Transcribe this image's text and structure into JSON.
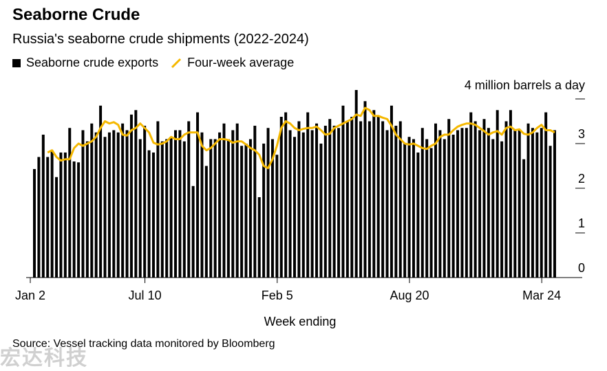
{
  "title": "Seaborne Crude",
  "subtitle": "Russia's seaborne crude shipments (2022-2024)",
  "source": "Source: Vessel tracking data monitored by Bloomberg",
  "watermark": "宏达科技",
  "legend": {
    "bars_label": "Seaborne crude exports",
    "line_label": "Four-week average"
  },
  "colors": {
    "bars": "#000000",
    "line": "#f5b800",
    "axis": "#000000"
  },
  "chart_data": {
    "type": "bar",
    "title": "Seaborne Crude",
    "subtitle": "Russia's seaborne crude shipments (2022-2024)",
    "xlabel": "Week ending",
    "ylabel": "",
    "unit_label": "4 million barrels a day",
    "ylim": [
      0,
      4
    ],
    "yticks": [
      0,
      1,
      2,
      3,
      4
    ],
    "ytick_labels": [
      "0",
      "1",
      "2",
      "3",
      ""
    ],
    "xtick_labels": [
      "Jan 2",
      "Jul 10",
      "Feb 5",
      "Aug 20",
      "Mar 24"
    ],
    "xtick_index": [
      0,
      26,
      56,
      86,
      116
    ],
    "grid": false,
    "legend_position": "top-left",
    "series": [
      {
        "name": "Seaborne crude exports",
        "type": "bar",
        "values": [
          2.43,
          2.7,
          3.2,
          2.7,
          2.85,
          2.25,
          2.8,
          2.8,
          3.35,
          2.6,
          2.58,
          3.3,
          3.05,
          3.45,
          3.25,
          3.85,
          3.15,
          3.25,
          3.3,
          3.25,
          3.45,
          3.3,
          3.65,
          3.75,
          3.1,
          3.4,
          2.85,
          2.8,
          3.5,
          3.05,
          3.1,
          3.15,
          3.3,
          3.3,
          3.05,
          3.5,
          2.05,
          3.7,
          3.25,
          2.5,
          3.1,
          3.1,
          3.25,
          3.45,
          3.1,
          3.3,
          3.45,
          2.95,
          3.0,
          3.1,
          3.4,
          1.8,
          3.0,
          3.35,
          3.1,
          2.75,
          3.6,
          3.7,
          3.3,
          3.15,
          3.5,
          3.25,
          3.7,
          3.3,
          3.45,
          3.0,
          3.4,
          3.55,
          3.4,
          3.35,
          3.85,
          3.5,
          3.6,
          4.2,
          3.5,
          3.95,
          3.5,
          3.75,
          3.6,
          3.5,
          3.3,
          3.85,
          3.4,
          3.5,
          3.0,
          3.15,
          3.1,
          2.8,
          3.35,
          3.1,
          2.9,
          3.45,
          3.3,
          3.1,
          3.55,
          3.2,
          3.3,
          3.35,
          3.35,
          3.7,
          3.5,
          3.3,
          3.55,
          3.35,
          3.1,
          3.75,
          3.05,
          3.5,
          3.75,
          3.3,
          3.3,
          2.65,
          3.45,
          3.35,
          3.25,
          3.35,
          3.7,
          2.95,
          3.3
        ],
        "color": "#000000"
      },
      {
        "name": "Four-week average",
        "type": "line",
        "values": [
          null,
          null,
          null,
          2.8,
          2.85,
          2.7,
          2.62,
          2.65,
          2.65,
          2.9,
          3.0,
          2.95,
          3.0,
          3.05,
          3.15,
          3.35,
          3.5,
          3.45,
          3.48,
          3.42,
          3.2,
          3.18,
          3.3,
          3.35,
          3.45,
          3.35,
          3.25,
          3.02,
          2.98,
          3.0,
          3.05,
          3.15,
          3.1,
          3.1,
          3.2,
          3.25,
          3.25,
          3.25,
          2.95,
          2.85,
          2.9,
          3.0,
          3.1,
          3.1,
          3.08,
          3.02,
          3.05,
          3.05,
          2.98,
          2.9,
          2.85,
          2.75,
          2.5,
          2.45,
          2.65,
          2.95,
          3.35,
          3.5,
          3.45,
          3.35,
          3.3,
          3.33,
          3.35,
          3.35,
          3.38,
          3.3,
          3.2,
          3.22,
          3.35,
          3.4,
          3.45,
          3.5,
          3.55,
          3.65,
          3.62,
          3.8,
          3.75,
          3.62,
          3.62,
          3.58,
          3.55,
          3.4,
          3.2,
          3.1,
          3.0,
          2.98,
          3.0,
          2.95,
          2.9,
          2.88,
          2.95,
          3.0,
          3.15,
          3.2,
          3.2,
          3.3,
          3.38,
          3.42,
          3.45,
          3.45,
          3.42,
          3.35,
          3.28,
          3.2,
          3.25,
          3.28,
          3.2,
          3.35,
          3.38,
          3.3,
          3.32,
          3.22,
          3.2,
          3.25,
          3.35,
          3.42,
          3.3,
          3.3,
          3.25
        ],
        "color": "#f5b800"
      }
    ]
  }
}
